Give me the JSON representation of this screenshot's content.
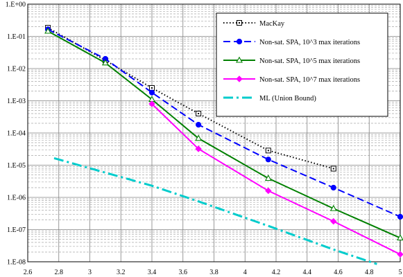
{
  "chart_data": {
    "type": "line",
    "title": "",
    "xlabel": "",
    "ylabel": "",
    "xlim": [
      2.6,
      5.0
    ],
    "ylim": [
      1e-08,
      1
    ],
    "yscale": "log",
    "grid": true,
    "legend_position": "top-right",
    "x_ticks": [
      "2.6",
      "2.8",
      "3",
      "3.2",
      "3.4",
      "3.6",
      "3.8",
      "4",
      "4.2",
      "4.4",
      "4.6",
      "4.8",
      "5"
    ],
    "y_ticks": [
      "1.E+00",
      "1.E-01",
      "1.E-02",
      "1.E-03",
      "1.E-04",
      "1.E-05",
      "1.E-06",
      "1.E-07",
      "1.E-08"
    ],
    "series": [
      {
        "name": "MacKay",
        "color": "#000000",
        "marker": "square-dot",
        "line_style": "dotted",
        "x": [
          2.73,
          3.1,
          3.4,
          3.7,
          4.15,
          4.57
        ],
        "y": [
          0.185,
          0.018,
          0.0025,
          0.0004,
          2.85e-05,
          7.8e-06
        ]
      },
      {
        "name": "Non-sat. SPA, 10^3 max iterations",
        "color": "#0000ff",
        "marker": "circle",
        "line_style": "dashed",
        "x": [
          2.73,
          3.1,
          3.4,
          3.7,
          4.15,
          4.57,
          5.0
        ],
        "y": [
          0.165,
          0.02,
          0.0018,
          0.00018,
          1.5e-05,
          2e-06,
          2.5e-07
        ]
      },
      {
        "name": "Non-sat. SPA, 10^5 max iterations",
        "color": "#008000",
        "marker": "triangle",
        "line_style": "solid",
        "x": [
          2.73,
          3.1,
          3.4,
          3.7,
          4.15,
          4.57,
          5.0
        ],
        "y": [
          0.145,
          0.015,
          0.0011,
          6.8e-05,
          3.9e-06,
          4.5e-07,
          5.5e-08
        ]
      },
      {
        "name": "Non-sat. SPA, 10^7 max iterations",
        "color": "#ff00ff",
        "marker": "diamond",
        "line_style": "solid",
        "x": [
          3.4,
          3.7,
          4.15,
          4.57,
          5.0
        ],
        "y": [
          0.0008,
          3.2e-05,
          1.6e-06,
          1.8e-07,
          1.7e-08
        ]
      },
      {
        "name": "ML (Union Bound)",
        "color": "#00cccc",
        "marker": "none",
        "line_style": "dash-dot",
        "x": [
          2.77,
          3.4,
          3.7,
          4.15,
          4.57,
          4.85
        ],
        "y": [
          1.65e-05,
          2.3e-06,
          7.5e-07,
          1.3e-07,
          2.4e-08,
          8.5e-09
        ]
      }
    ]
  }
}
